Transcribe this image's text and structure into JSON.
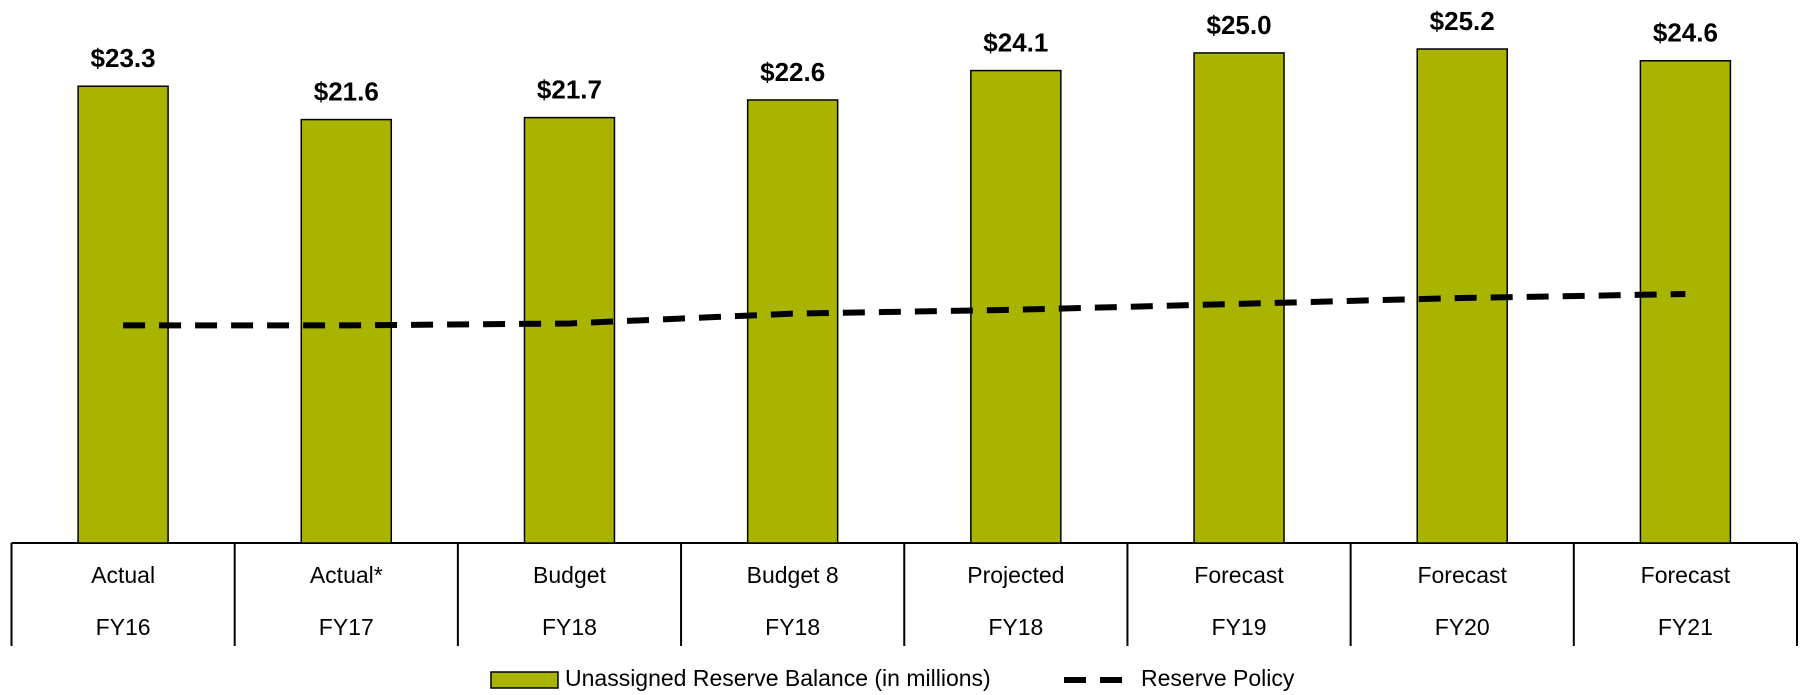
{
  "chart_data": {
    "type": "bar",
    "categories": [
      [
        "Actual",
        "FY16"
      ],
      [
        "Actual*",
        "FY17"
      ],
      [
        "Budget",
        "FY18"
      ],
      [
        "Budget 8",
        "FY18"
      ],
      [
        "Projected",
        "FY18"
      ],
      [
        "Forecast",
        "FY19"
      ],
      [
        "Forecast",
        "FY20"
      ],
      [
        "Forecast",
        "FY21"
      ]
    ],
    "series": [
      {
        "name": "Unassigned Reserve Balance (in millions)",
        "color": "#a8b400",
        "type": "bar",
        "values": [
          23.3,
          21.6,
          21.7,
          22.6,
          24.1,
          25.0,
          25.2,
          24.6
        ],
        "value_labels": [
          "$23.3",
          "$21.6",
          "$21.7",
          "$22.6",
          "$24.1",
          "$25.0",
          "$25.2",
          "$24.6"
        ]
      },
      {
        "name": "Reserve Policy",
        "color": "#000000",
        "type": "line",
        "values": [
          11.1,
          11.1,
          11.2,
          11.7,
          11.9,
          12.2,
          12.5,
          12.7
        ]
      }
    ],
    "ylim": [
      0,
      27.7
    ]
  }
}
